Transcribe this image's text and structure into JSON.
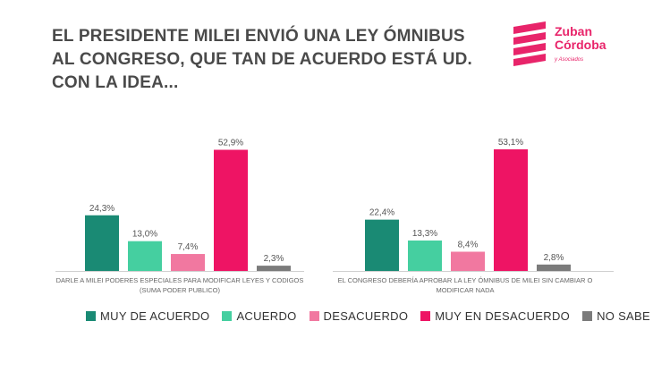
{
  "title": "EL PRESIDENTE MILEI ENVIÓ UNA LEY ÓMNIBUS AL CONGRESO, QUE TAN DE ACUERDO ESTÁ UD. CON LA IDEA...",
  "logo": {
    "line1": "Zuban",
    "line2": "Córdoba",
    "sub": "y Asociados"
  },
  "colors": {
    "muy_de_acuerdo": "#1a8a74",
    "acuerdo": "#45cfa0",
    "desacuerdo": "#f178a0",
    "muy_en_desacuerdo": "#ee1464",
    "no_sabe": "#7b7b7b"
  },
  "chart_data": {
    "type": "bar",
    "categories": [
      [
        "DARLE A MILEI PODERES ESPECIALES PARA MODIFICAR LEYES Y CODIGOS",
        "(SUMA PODER PUBLICO)"
      ],
      [
        "EL CONGRESO DEBERÍA APROBAR LA LEY ÓMNIBUS DE MILEI SIN CAMBIAR O",
        "MODIFICAR NADA"
      ]
    ],
    "series": [
      {
        "name": "MUY DE ACUERDO",
        "values": [
          24.3,
          22.4
        ],
        "labels": [
          "24,3%",
          "22,4%"
        ]
      },
      {
        "name": "ACUERDO",
        "values": [
          13.0,
          13.3
        ],
        "labels": [
          "13,0%",
          "13,3%"
        ]
      },
      {
        "name": "DESACUERDO",
        "values": [
          7.4,
          8.4
        ],
        "labels": [
          "7,4%",
          "8,4%"
        ]
      },
      {
        "name": "MUY EN DESACUERDO",
        "values": [
          52.9,
          53.1
        ],
        "labels": [
          "52,9%",
          "53,1%"
        ]
      },
      {
        "name": "NO SABE",
        "values": [
          2.3,
          2.8
        ],
        "labels": [
          "2,3%",
          "2,8%"
        ]
      }
    ],
    "ylim": [
      0,
      60
    ],
    "legend": "bottom"
  }
}
